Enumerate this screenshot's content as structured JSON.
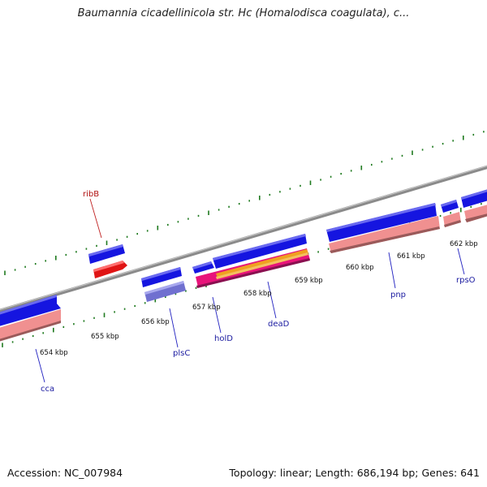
{
  "title": "Baumannia cicadellinicola str. Hc (Homalodisca coagulata), c...",
  "footer": {
    "accession": "Accession: NC_007984",
    "summary": "Topology: linear; Length: 686,194 bp; Genes: 641"
  },
  "colors": {
    "backbone": "#8a8a8a",
    "tick": "#1f7a1f",
    "cds": "#1515e0",
    "rna": "#e01515",
    "cds_shadow": "#f09090",
    "protein_shadow": "#7070d0",
    "pink": "#e8147a",
    "orange": "#f0a020",
    "label_blue": "#1a1aa0",
    "label_red": "#b01010"
  },
  "ruler": {
    "unit": "kbp",
    "ticks": [
      {
        "kbp": 654,
        "label": "654 kbp"
      },
      {
        "kbp": 655,
        "label": "655 kbp"
      },
      {
        "kbp": 656,
        "label": "656 kbp"
      },
      {
        "kbp": 657,
        "label": "657 kbp"
      },
      {
        "kbp": 658,
        "label": "658 kbp"
      },
      {
        "kbp": 659,
        "label": "659 kbp"
      },
      {
        "kbp": 660,
        "label": "660 kbp"
      },
      {
        "kbp": 661,
        "label": "661 kbp"
      },
      {
        "kbp": 662,
        "label": "662 kbp"
      }
    ]
  },
  "genes": [
    {
      "name": "cca",
      "strand": "reverse",
      "color": "label_blue"
    },
    {
      "name": "ribB",
      "strand": "forward",
      "color": "label_red"
    },
    {
      "name": "plsC",
      "strand": "reverse",
      "color": "label_blue"
    },
    {
      "name": "holD",
      "strand": "reverse",
      "color": "label_blue"
    },
    {
      "name": "deaD",
      "strand": "forward",
      "color": "label_blue"
    },
    {
      "name": "pnp",
      "strand": "reverse",
      "color": "label_blue"
    },
    {
      "name": "rpsO",
      "strand": "reverse",
      "color": "label_blue"
    }
  ]
}
